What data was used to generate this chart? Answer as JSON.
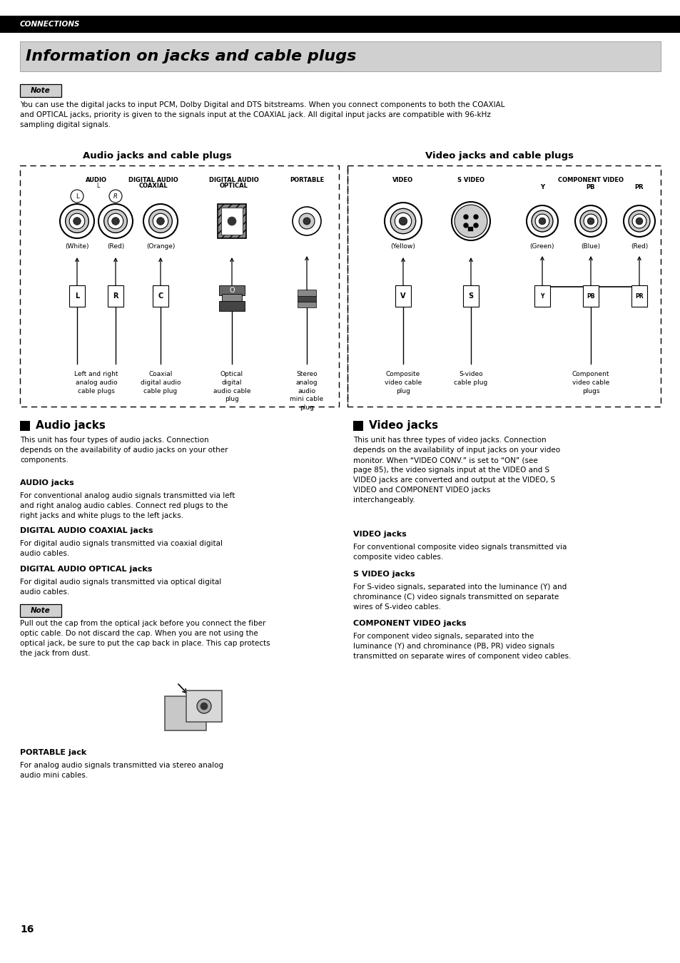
{
  "bg_color": "#ffffff",
  "page_width": 9.54,
  "page_height": 13.5,
  "connections_bar": {
    "text": "CONNECTIONS",
    "bg": "#000000",
    "fg": "#ffffff"
  },
  "title_text": "Information on jacks and cable plugs",
  "note_text1": "You can use the digital jacks to input PCM, Dolby Digital and DTS bitstreams. When you connect components to both the COAXIAL\nand OPTICAL jacks, priority is given to the signals input at the COAXIAL jack. All digital input jacks are compatible with 96-kHz\nsampling digital signals.",
  "audio_section_title": "Audio jacks and cable plugs",
  "video_section_title": "Video jacks and cable plugs",
  "audio_jacks_heading": "Audio jacks",
  "audio_jacks_body": "This unit has four types of audio jacks. Connection\ndepends on the availability of audio jacks on your other\ncomponents.",
  "audio_jacks_sub": [
    {
      "heading": "AUDIO jacks",
      "body": "For conventional analog audio signals transmitted via left\nand right analog audio cables. Connect red plugs to the\nright jacks and white plugs to the left jacks."
    },
    {
      "heading": "DIGITAL AUDIO COAXIAL jacks",
      "body": "For digital audio signals transmitted via coaxial digital\naudio cables."
    },
    {
      "heading": "DIGITAL AUDIO OPTICAL jacks",
      "body": "For digital audio signals transmitted via optical digital\naudio cables."
    }
  ],
  "note_text2": "Pull out the cap from the optical jack before you connect the fiber\noptic cable. Do not discard the cap. When you are not using the\noptical jack, be sure to put the cap back in place. This cap protects\nthe jack from dust.",
  "portable_jack_heading": "PORTABLE jack",
  "portable_jack_body": "For analog audio signals transmitted via stereo analog\naudio mini cables.",
  "video_jacks_heading": "Video jacks",
  "video_jacks_body": "This unit has three types of video jacks. Connection\ndepends on the availability of input jacks on your video\nmonitor. When “VIDEO CONV.” is set to “ON” (see\npage 85), the video signals input at the VIDEO and S\nVIDEO jacks are converted and output at the VIDEO, S\nVIDEO and COMPONENT VIDEO jacks\ninterchangeably.",
  "video_jacks_sub": [
    {
      "heading": "VIDEO jacks",
      "body": "For conventional composite video signals transmitted via\ncomposite video cables."
    },
    {
      "heading": "S VIDEO jacks",
      "body": "For S-video signals, separated into the luminance (Y) and\nchrominance (C) video signals transmitted on separate\nwires of S-video cables."
    },
    {
      "heading": "COMPONENT VIDEO jacks",
      "body": "For component video signals, separated into the\nluminance (Y) and chrominance (PB, PR) video signals\ntransmitted on separate wires of component video cables."
    }
  ],
  "page_number": "16"
}
